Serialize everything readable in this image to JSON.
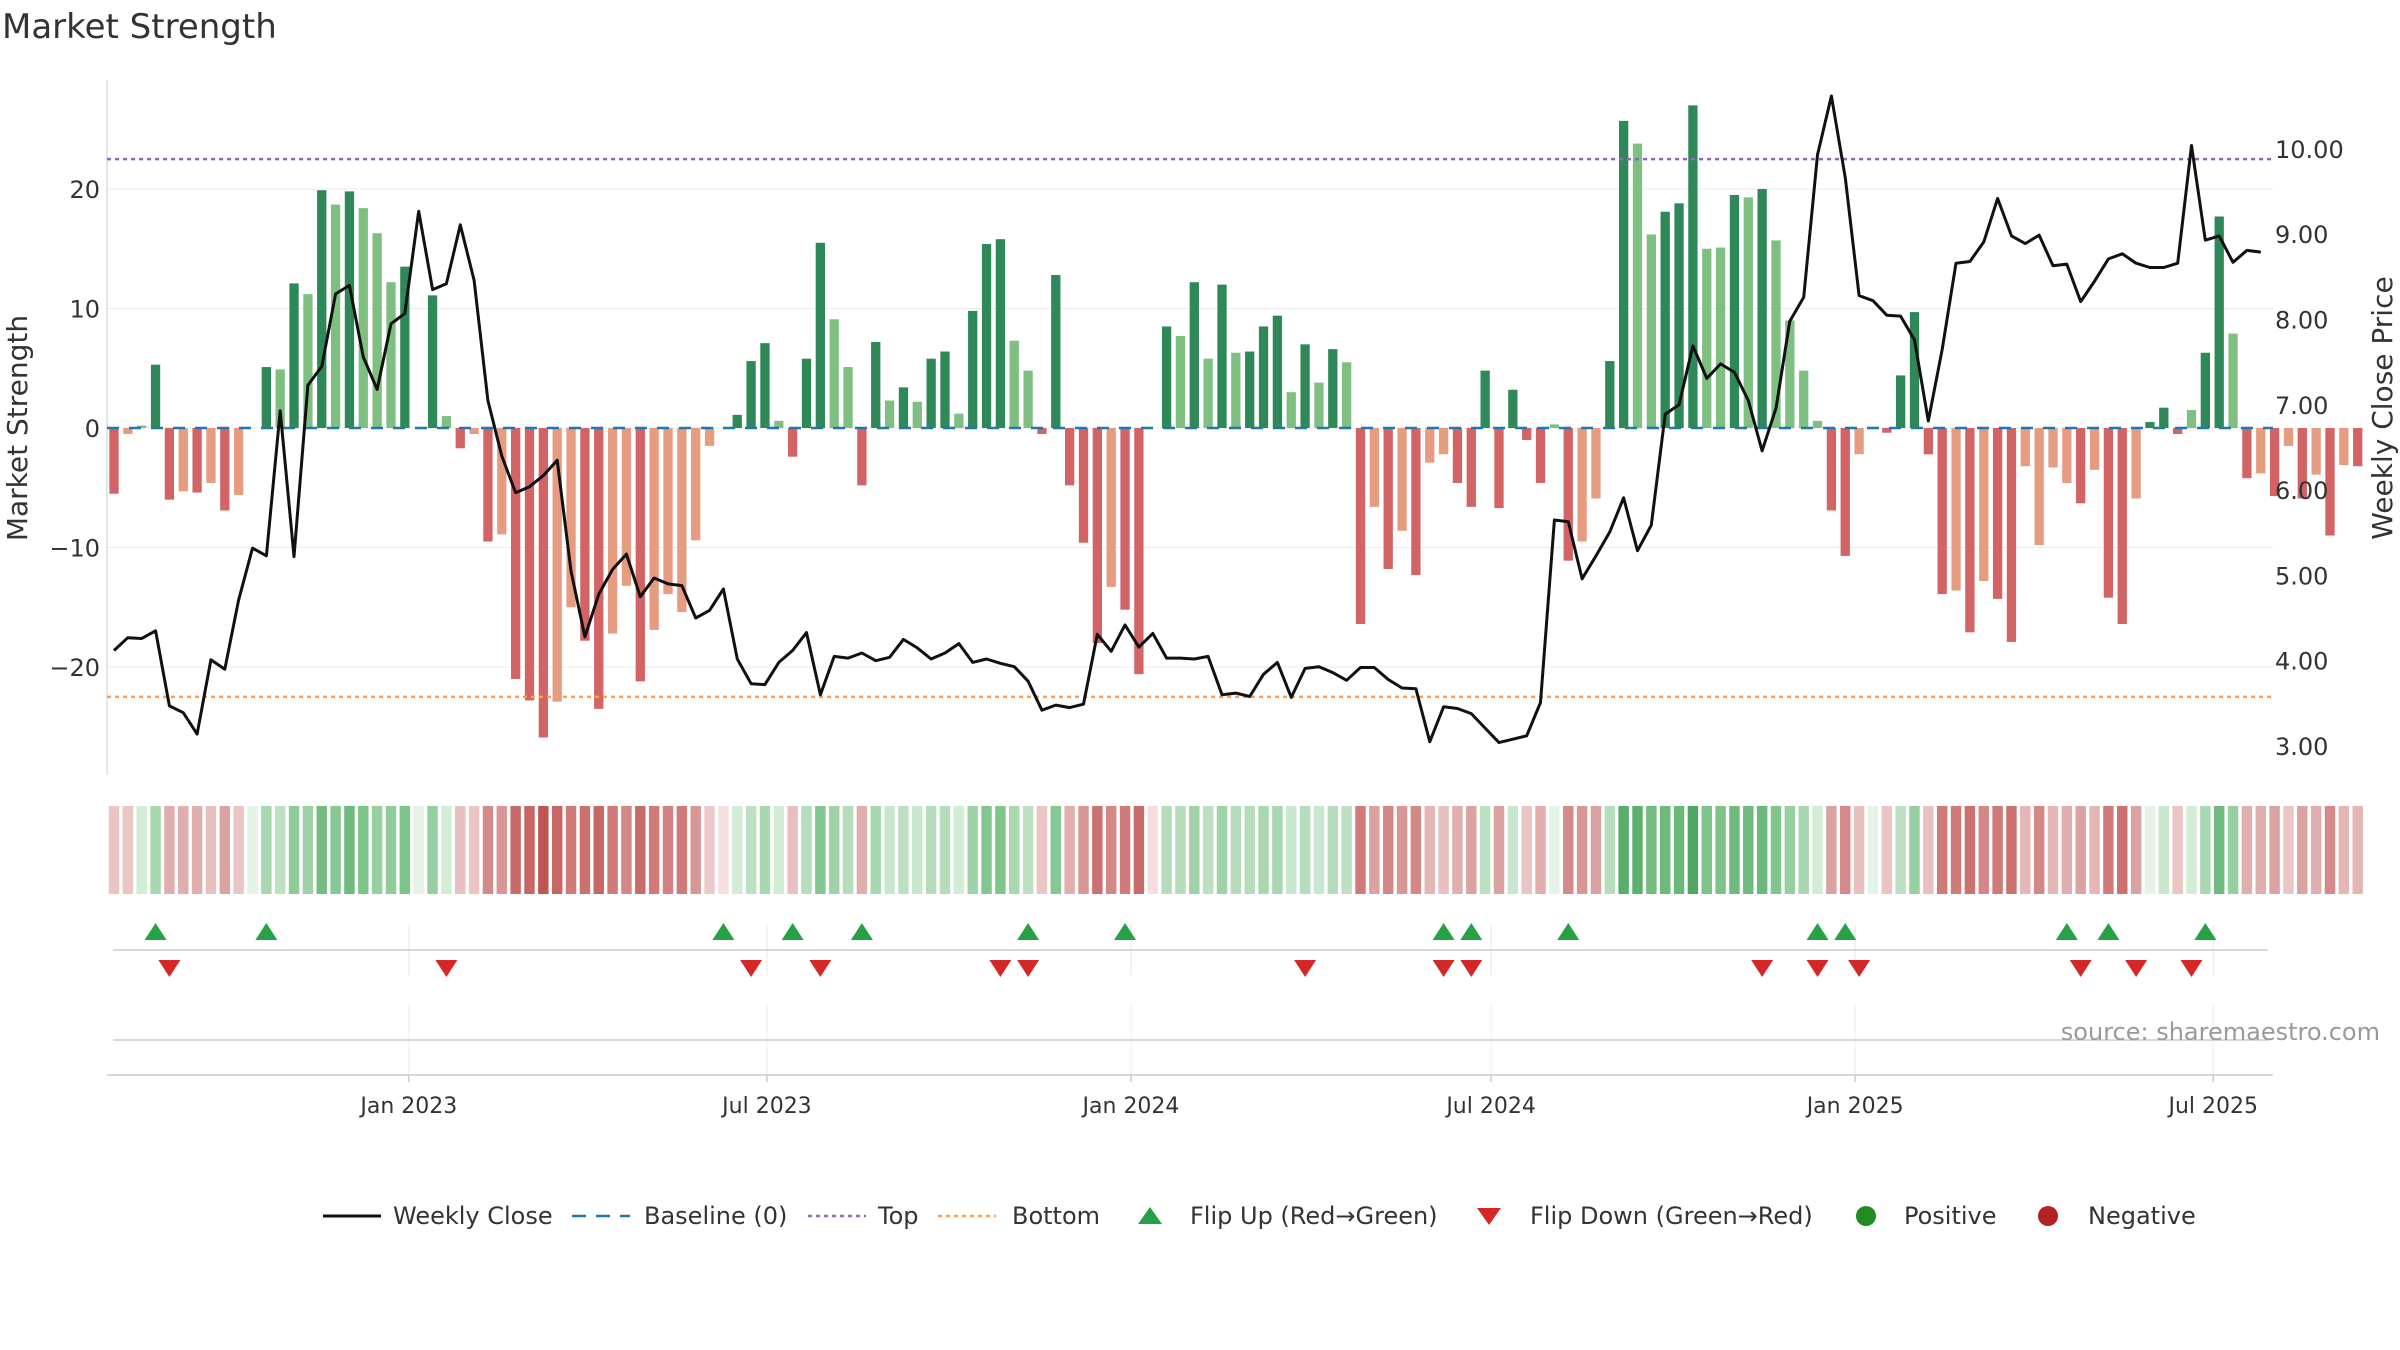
{
  "chart_data": {
    "type": "bar",
    "title": "Market Strength",
    "source": "source: sharemaestro.com",
    "ylabel_left": "Market Strength",
    "ylabel_right": "Weekly Close Price",
    "ylim_left": [
      -29,
      30
    ],
    "ylim_right": [
      2.6,
      11.0
    ],
    "yticks_left": [
      20,
      10,
      0,
      -10,
      -20
    ],
    "yticks_left_labels": [
      "20",
      "10",
      "0",
      "−10",
      "−20"
    ],
    "yticks_right": [
      10,
      9,
      8,
      7,
      6,
      5,
      4,
      3
    ],
    "yticks_right_labels": [
      "10.00",
      "9.00",
      "8.00",
      "7.00",
      "6.00",
      "5.00",
      "4.00",
      "3.00"
    ],
    "top_threshold": 22.5,
    "bottom_threshold": -22.5,
    "x_start": "2022-08-05",
    "week_days": 7,
    "xticks": [
      {
        "date": "2023-01-01",
        "label": "Jan 2023"
      },
      {
        "date": "2023-07-01",
        "label": "Jul 2023"
      },
      {
        "date": "2024-01-01",
        "label": "Jan 2024"
      },
      {
        "date": "2024-07-01",
        "label": "Jul 2024"
      },
      {
        "date": "2025-01-01",
        "label": "Jan 2025"
      },
      {
        "date": "2025-07-01",
        "label": "Jul 2025"
      }
    ],
    "strength": [
      -5.5,
      -0.5,
      0.2,
      5.3,
      -6,
      -5.3,
      -5.4,
      -4.6,
      -6.9,
      -5.6,
      0,
      5.1,
      4.9,
      12.1,
      11.2,
      19.9,
      18.7,
      19.8,
      18.4,
      16.3,
      12.2,
      13.5,
      0,
      11.1,
      1,
      -1.7,
      -0.5,
      -9.5,
      -8.9,
      -21,
      -22.8,
      -25.9,
      -22.9,
      -15,
      -17.8,
      -23.5,
      -17.2,
      -13.2,
      -21.2,
      -16.9,
      -13.9,
      -15.4,
      -9.4,
      -1.5,
      0,
      1.1,
      5.6,
      7.1,
      0.6,
      -2.4,
      5.8,
      15.5,
      9.1,
      5.1,
      -4.8,
      7.2,
      2.3,
      3.4,
      2.2,
      5.8,
      6.4,
      1.2,
      9.8,
      15.4,
      15.8,
      7.3,
      4.8,
      -0.5,
      12.8,
      -4.8,
      -9.6,
      -18,
      -13.3,
      -15.2,
      -20.6,
      0,
      8.5,
      7.7,
      12.2,
      5.8,
      12,
      6.3,
      6.4,
      8.5,
      9.4,
      3,
      7,
      3.8,
      6.6,
      5.5,
      -16.4,
      -6.6,
      -11.8,
      -8.6,
      -12.3,
      -2.9,
      -2.2,
      -4.6,
      -6.6,
      4.8,
      -6.7,
      3.2,
      -1,
      -4.6,
      0.3,
      -11.1,
      -9.5,
      -5.9,
      5.6,
      25.7,
      23.8,
      16.2,
      18.1,
      18.8,
      27,
      15,
      15.1,
      19.5,
      19.3,
      20,
      15.7,
      9,
      4.8,
      0.6,
      -6.9,
      -10.7,
      -2.2,
      0.1,
      -0.4,
      4.4,
      9.7,
      -2.2,
      -13.9,
      -13.6,
      -17.1,
      -12.8,
      -14.3,
      -17.9,
      -3.2,
      -9.8,
      -3.3,
      -4.6,
      -6.3,
      -3.5,
      -14.2,
      -16.4,
      -5.9,
      0.5,
      1.7,
      -0.5,
      1.5,
      6.3,
      17.7,
      7.9,
      -4.2,
      -3.8,
      -5.7,
      -1.5,
      -5.9,
      -3.9,
      -9,
      -3.1,
      -3.2
    ],
    "strength_colors": [
      "#d26465",
      "#e69c80",
      "#7fc082",
      "#2e8858",
      "#d26465",
      "#e69c80",
      "#d26465",
      "#e69c80",
      "#d26465",
      "#e69c80",
      "#7fc082",
      "#2e8858",
      "#7fc082",
      "#2e8858",
      "#7fc082",
      "#2e8858",
      "#7fc082",
      "#2e8858",
      "#7fc082",
      "#7fc082",
      "#7fc082",
      "#2e8858",
      "#7fc082",
      "#2e8858",
      "#7fc082",
      "#d26465",
      "#e69c80",
      "#d26465",
      "#e69c80",
      "#d26465",
      "#d26465",
      "#d26465",
      "#e69c80",
      "#e69c80",
      "#d26465",
      "#d26465",
      "#e69c80",
      "#e69c80",
      "#d26465",
      "#e69c80",
      "#e69c80",
      "#e69c80",
      "#e69c80",
      "#e69c80",
      "#7fc082",
      "#2e8858",
      "#2e8858",
      "#2e8858",
      "#7fc082",
      "#d26465",
      "#2e8858",
      "#2e8858",
      "#7fc082",
      "#7fc082",
      "#d26465",
      "#2e8858",
      "#7fc082",
      "#2e8858",
      "#7fc082",
      "#2e8858",
      "#2e8858",
      "#7fc082",
      "#2e8858",
      "#2e8858",
      "#2e8858",
      "#7fc082",
      "#7fc082",
      "#d26465",
      "#2e8858",
      "#d26465",
      "#d26465",
      "#d26465",
      "#e69c80",
      "#d26465",
      "#d26465",
      "#7fc082",
      "#2e8858",
      "#7fc082",
      "#2e8858",
      "#7fc082",
      "#2e8858",
      "#7fc082",
      "#2e8858",
      "#2e8858",
      "#2e8858",
      "#7fc082",
      "#2e8858",
      "#7fc082",
      "#2e8858",
      "#7fc082",
      "#d26465",
      "#e69c80",
      "#d26465",
      "#e69c80",
      "#d26465",
      "#e69c80",
      "#e69c80",
      "#d26465",
      "#d26465",
      "#2e8858",
      "#d26465",
      "#2e8858",
      "#d26465",
      "#d26465",
      "#7fc082",
      "#d26465",
      "#e69c80",
      "#e69c80",
      "#2e8858",
      "#2e8858",
      "#7fc082",
      "#7fc082",
      "#2e8858",
      "#2e8858",
      "#2e8858",
      "#7fc082",
      "#7fc082",
      "#2e8858",
      "#7fc082",
      "#2e8858",
      "#7fc082",
      "#7fc082",
      "#7fc082",
      "#7fc082",
      "#d26465",
      "#d26465",
      "#e69c80",
      "#7fc082",
      "#d26465",
      "#2e8858",
      "#2e8858",
      "#d26465",
      "#d26465",
      "#e69c80",
      "#d26465",
      "#e69c80",
      "#d26465",
      "#d26465",
      "#e69c80",
      "#e69c80",
      "#e69c80",
      "#e69c80",
      "#d26465",
      "#e69c80",
      "#d26465",
      "#d26465",
      "#e69c80",
      "#2e8858",
      "#2e8858",
      "#d26465",
      "#7fc082",
      "#2e8858",
      "#2e8858",
      "#7fc082",
      "#d26465",
      "#e69c80",
      "#d26465",
      "#e69c80",
      "#d26465",
      "#e69c80",
      "#d26465",
      "#e69c80",
      "#d26465"
    ],
    "price": [
      4.12,
      4.27,
      4.26,
      4.35,
      3.47,
      3.39,
      3.14,
      4.01,
      3.9,
      4.71,
      5.32,
      5.23,
      6.93,
      5.22,
      7.23,
      7.45,
      8.3,
      8.4,
      7.56,
      7.18,
      7.95,
      8.07,
      9.27,
      8.35,
      8.42,
      9.11,
      8.46,
      7.05,
      6.4,
      5.97,
      6.04,
      6.17,
      6.35,
      5.05,
      4.28,
      4.78,
      5.07,
      5.25,
      4.75,
      4.97,
      4.9,
      4.88,
      4.5,
      4.59,
      4.84,
      4.02,
      3.73,
      3.72,
      3.98,
      4.12,
      4.33,
      3.6,
      4.05,
      4.03,
      4.09,
      4.0,
      4.04,
      4.25,
      4.15,
      4.02,
      4.09,
      4.2,
      3.98,
      4.02,
      3.97,
      3.93,
      3.76,
      3.42,
      3.48,
      3.45,
      3.49,
      4.31,
      4.11,
      4.42,
      4.16,
      4.32,
      4.03,
      4.03,
      4.02,
      4.05,
      3.6,
      3.62,
      3.58,
      3.84,
      3.98,
      3.57,
      3.91,
      3.93,
      3.86,
      3.77,
      3.92,
      3.92,
      3.78,
      3.68,
      3.67,
      3.05,
      3.46,
      3.44,
      3.38,
      3.21,
      3.04,
      3.08,
      3.12,
      3.51,
      5.65,
      5.63,
      4.96,
      5.23,
      5.51,
      5.91,
      5.29,
      5.59,
      6.89,
      7.0,
      7.69,
      7.31,
      7.48,
      7.38,
      7.05,
      6.46,
      6.96,
      7.98,
      8.26,
      9.93,
      10.62,
      9.66,
      8.28,
      8.22,
      8.05,
      8.04,
      7.76,
      6.81,
      7.65,
      8.66,
      8.68,
      8.91,
      9.42,
      8.98,
      8.89,
      8.99,
      8.63,
      8.65,
      8.21,
      8.45,
      8.71,
      8.77,
      8.66,
      8.61,
      8.61,
      8.66,
      10.04,
      8.93,
      8.98,
      8.67,
      8.81,
      8.79
    ],
    "heat_colors": [
      "#eac5c4",
      "#eac5c4",
      "#d3ecd6",
      "#a8d8b0",
      "#e1aeae",
      "#e1aeae",
      "#e1aeae",
      "#e8c0c0",
      "#dba2a2",
      "#eac5c4",
      "#e5f3e6",
      "#a8d8b0",
      "#bde0c2",
      "#8ecb98",
      "#9fd2a8",
      "#74bc82",
      "#85c891",
      "#6fba7e",
      "#7cc489",
      "#96cfa0",
      "#8fcc9a",
      "#7dc48a",
      "#e5f3e6",
      "#96cfa0",
      "#d3ecd6",
      "#e8c0c0",
      "#eac5c4",
      "#d48a8a",
      "#d89696",
      "#c86a6a",
      "#c86565",
      "#c05555",
      "#c86565",
      "#d07a7a",
      "#cc7070",
      "#c86565",
      "#d07a7a",
      "#d48787",
      "#c86b6b",
      "#d07a7a",
      "#d28282",
      "#d07a7a",
      "#d89696",
      "#ecc9c9",
      "#f4dede",
      "#d3ecd6",
      "#bde0c2",
      "#a8d8b0",
      "#d3ecd6",
      "#e8c0c0",
      "#b5dcbb",
      "#82c78f",
      "#9fd2a8",
      "#b5dcbb",
      "#e1aeae",
      "#a8d8b0",
      "#c9e7ce",
      "#bde0c2",
      "#c9e7ce",
      "#b5dcbb",
      "#b5dcbb",
      "#d3ecd6",
      "#9fd2a8",
      "#82c78f",
      "#7fc58c",
      "#a8d8b0",
      "#bde0c2",
      "#eac5c4",
      "#85c891",
      "#e1aeae",
      "#d89696",
      "#cc7070",
      "#d48787",
      "#d07a7a",
      "#c86b6b",
      "#f4dede",
      "#b5dcbb",
      "#b5dcbb",
      "#9fd2a8",
      "#bde0c2",
      "#9fd2a8",
      "#b5dcbb",
      "#b5dcbb",
      "#a8d8b0",
      "#a8d8b0",
      "#c9e7ce",
      "#b5dcbb",
      "#c9e7ce",
      "#b5dcbb",
      "#bde0c2",
      "#d07a7a",
      "#dba2a2",
      "#d48787",
      "#d89696",
      "#d48787",
      "#e5b6b6",
      "#e8c0c0",
      "#e1aeae",
      "#dba2a2",
      "#bde0c2",
      "#dba2a2",
      "#c9e7ce",
      "#eac5c4",
      "#e1aeae",
      "#e5f3e6",
      "#d48a8a",
      "#d89696",
      "#dba2a2",
      "#b5dcbb",
      "#58ad6b",
      "#5eb071",
      "#74bc82",
      "#6db97c",
      "#6ab87a",
      "#4fa664",
      "#7dc48a",
      "#7dc48a",
      "#6fba7e",
      "#6fba7e",
      "#6ab87a",
      "#7fc58c",
      "#96cfa0",
      "#a8d8b0",
      "#d3ecd6",
      "#dba2a2",
      "#d48a8a",
      "#e8c0c0",
      "#e5f3e6",
      "#eac5c4",
      "#bde0c2",
      "#96cfa0",
      "#e8c0c0",
      "#d07a7a",
      "#d07a7a",
      "#cc7070",
      "#d48787",
      "#d07a7a",
      "#cc7070",
      "#e5b6b6",
      "#d48787",
      "#e5b6b6",
      "#e1aeae",
      "#dba2a2",
      "#e5b6b6",
      "#d07a7a",
      "#cc7070",
      "#dba2a2",
      "#e5f3e6",
      "#c9e7ce",
      "#eac5c4",
      "#d3ecd6",
      "#a8d8b0",
      "#6fba7e",
      "#96cfa0",
      "#e1aeae",
      "#e1aeae",
      "#dba2a2",
      "#eac5c4",
      "#dba2a2",
      "#e1aeae",
      "#d48a8a",
      "#e5b6b6",
      "#e5b6b6"
    ],
    "flip_up_weeks": [
      3,
      11,
      44,
      49,
      54,
      66,
      73,
      96,
      98,
      105,
      123,
      125,
      141,
      144,
      151
    ],
    "flip_down_weeks": [
      4,
      24,
      46,
      51,
      64,
      66,
      86,
      96,
      98,
      119,
      123,
      126,
      142,
      146,
      150
    ],
    "legend": [
      {
        "label": "Weekly Close",
        "icon": "line"
      },
      {
        "label": "Baseline (0)",
        "icon": "dash"
      },
      {
        "label": "Top",
        "icon": "dot-purple"
      },
      {
        "label": "Bottom",
        "icon": "dot-orange"
      },
      {
        "label": "Flip Up (Red→Green)",
        "icon": "triangle-up"
      },
      {
        "label": "Flip Down (Green→Red)",
        "icon": "triangle-down"
      },
      {
        "label": "Positive",
        "icon": "circle-green"
      },
      {
        "label": "Negative",
        "icon": "circle-red"
      }
    ],
    "legend_placement": "bottom",
    "colors": {
      "price_line": "#111111",
      "baseline": "#1f77b4",
      "top": "#9467bd",
      "bottom": "#ff9f4a",
      "flip_up": "#27a146",
      "flip_down": "#d62728",
      "positive": "#228b22",
      "negative": "#b22222"
    }
  }
}
